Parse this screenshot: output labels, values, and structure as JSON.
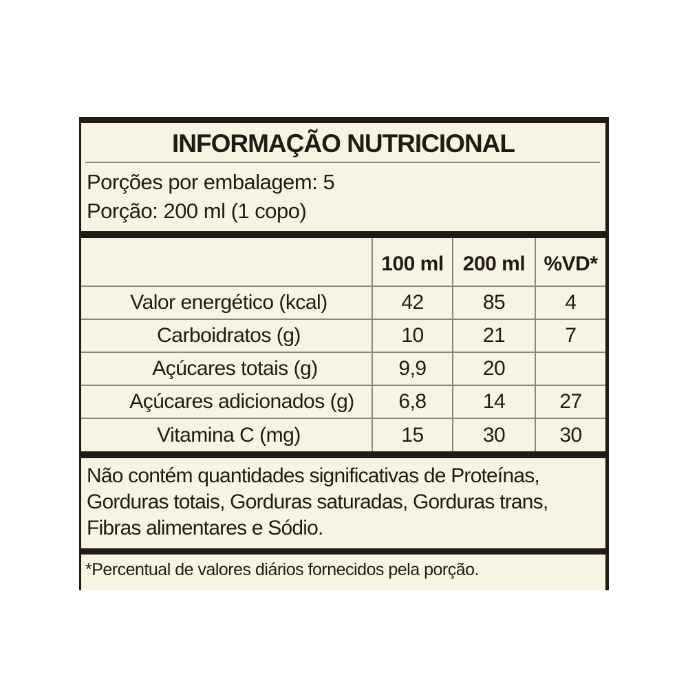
{
  "label": {
    "title": "INFORMAÇÃO NUTRICIONAL",
    "servings": {
      "per_package": "Porções por embalagem: 5",
      "portion": "Porção: 200 ml (1 copo)"
    },
    "table": {
      "columns": [
        "",
        "100 ml",
        "200 ml",
        "%VD*"
      ],
      "rows": [
        {
          "name": "Valor energético (kcal)",
          "indent": 0,
          "v100": "42",
          "v200": "85",
          "vd": "4"
        },
        {
          "name": "Carboidratos (g)",
          "indent": 0,
          "v100": "10",
          "v200": "21",
          "vd": "7"
        },
        {
          "name": "Açúcares totais (g)",
          "indent": 1,
          "v100": "9,9",
          "v200": "20",
          "vd": ""
        },
        {
          "name": "Açúcares adicionados (g)",
          "indent": 2,
          "v100": "6,8",
          "v200": "14",
          "vd": "27"
        },
        {
          "name": "Vitamina C (mg)",
          "indent": 0,
          "v100": "15",
          "v200": "30",
          "vd": "30"
        }
      ]
    },
    "no_significant": "Não contém quantidades significativas de Proteínas, Gorduras totais, Gorduras saturadas, Gorduras trans, Fibras alimentares e Sódio.",
    "footnote": "*Percentual de valores diários fornecidos pela porção."
  },
  "colors": {
    "background": "#f7f4e1",
    "ink": "#221b13",
    "line": "#8a897e",
    "page": "#ffffff"
  }
}
